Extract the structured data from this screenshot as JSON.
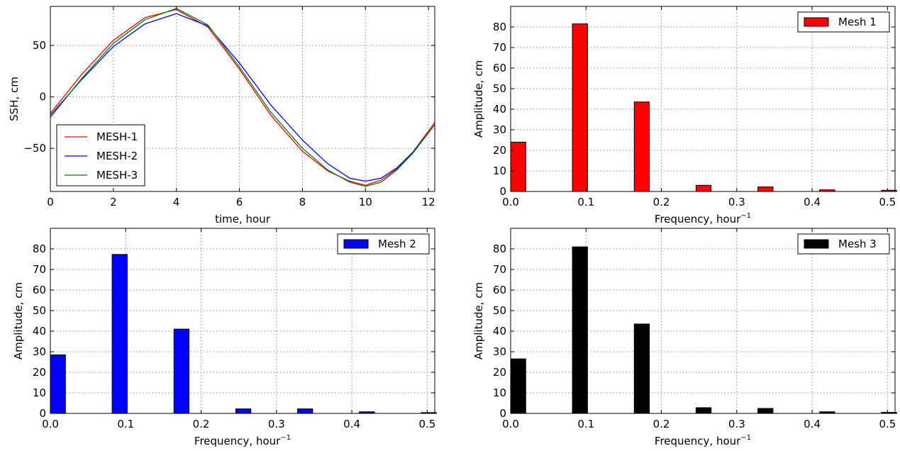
{
  "chart_data": [
    {
      "type": "line",
      "xlabel": "time, hour",
      "ylabel": "SSH, cm",
      "xlim": [
        0,
        12.2
      ],
      "ylim": [
        -92,
        88
      ],
      "xticks": [
        0,
        2,
        4,
        6,
        8,
        10,
        12
      ],
      "yticks": [
        -50,
        0,
        50
      ],
      "ytick_labels": [
        "−50",
        "0",
        "50"
      ],
      "grid": true,
      "legend_position": "lower-left",
      "series": [
        {
          "name": "MESH-1",
          "color": "#ff0000",
          "x": [
            0,
            1,
            2,
            3,
            4,
            5,
            6,
            7,
            8,
            8.8,
            9.5,
            10,
            10.5,
            11,
            11.5,
            12.2
          ],
          "y": [
            -16,
            22,
            55,
            77,
            85,
            68,
            27,
            -18,
            -53,
            -72,
            -82,
            -86,
            -81,
            -70,
            -54,
            -25
          ]
        },
        {
          "name": "MESH-2",
          "color": "#0000ff",
          "x": [
            0,
            1,
            2,
            3,
            4,
            5,
            6,
            7,
            8,
            8.8,
            9.5,
            10,
            10.5,
            11,
            11.5,
            12.2
          ],
          "y": [
            -18,
            17,
            49,
            71,
            81,
            69,
            33,
            -8,
            -42,
            -65,
            -79,
            -82,
            -79,
            -69,
            -54,
            -27
          ]
        },
        {
          "name": "MESH-3",
          "color": "#008000",
          "x": [
            0,
            1,
            2,
            3,
            4,
            5,
            6,
            7,
            8,
            8.8,
            9.5,
            10,
            10.5,
            11,
            11.5,
            12.2
          ],
          "y": [
            -20,
            18,
            52,
            75,
            86,
            70,
            29,
            -15,
            -50,
            -71,
            -83,
            -87,
            -83,
            -71,
            -55,
            -27
          ]
        }
      ]
    },
    {
      "type": "bar",
      "xlabel": "Frequency, hour",
      "xlabel_sup": "−1",
      "ylabel": "Amplitude, cm",
      "xlim": [
        0,
        0.51
      ],
      "ylim": [
        0,
        90
      ],
      "xticks": [
        0.0,
        0.1,
        0.2,
        0.3,
        0.4,
        0.5
      ],
      "xtick_labels": [
        "0.0",
        "0.1",
        "0.2",
        "0.3",
        "0.4",
        "0.5"
      ],
      "yticks": [
        0,
        10,
        20,
        30,
        40,
        50,
        60,
        70,
        80
      ],
      "grid": true,
      "legend_position": "top-right",
      "series": [
        {
          "name": "Mesh 1",
          "color": "#ff0000",
          "x": [
            0.0,
            0.082,
            0.164,
            0.246,
            0.328,
            0.41,
            0.492
          ],
          "values": [
            24,
            81.5,
            43.5,
            3,
            2.2,
            0.8,
            0.6
          ]
        }
      ]
    },
    {
      "type": "bar",
      "xlabel": "Frequency, hour",
      "xlabel_sup": "−1",
      "ylabel": "Amplitude, cm",
      "xlim": [
        0,
        0.51
      ],
      "ylim": [
        0,
        90
      ],
      "xticks": [
        0.0,
        0.1,
        0.2,
        0.3,
        0.4,
        0.5
      ],
      "xtick_labels": [
        "0.0",
        "0.1",
        "0.2",
        "0.3",
        "0.4",
        "0.5"
      ],
      "yticks": [
        0,
        10,
        20,
        30,
        40,
        50,
        60,
        70,
        80
      ],
      "grid": true,
      "legend_position": "top-right",
      "series": [
        {
          "name": "Mesh 2",
          "color": "#0000ff",
          "x": [
            0.0,
            0.082,
            0.164,
            0.246,
            0.328,
            0.41,
            0.492
          ],
          "values": [
            28.5,
            77.3,
            41,
            2.2,
            2.2,
            0.8,
            0.4
          ]
        }
      ]
    },
    {
      "type": "bar",
      "xlabel": "Frequency, hour",
      "xlabel_sup": "−1",
      "ylabel": "Amplitude, cm",
      "xlim": [
        0,
        0.51
      ],
      "ylim": [
        0,
        90
      ],
      "xticks": [
        0.0,
        0.1,
        0.2,
        0.3,
        0.4,
        0.5
      ],
      "xtick_labels": [
        "0.0",
        "0.1",
        "0.2",
        "0.3",
        "0.4",
        "0.5"
      ],
      "yticks": [
        0,
        10,
        20,
        30,
        40,
        50,
        60,
        70,
        80
      ],
      "grid": true,
      "legend_position": "top-right",
      "series": [
        {
          "name": "Mesh 3",
          "color": "#000000",
          "x": [
            0.0,
            0.082,
            0.164,
            0.246,
            0.328,
            0.41,
            0.492
          ],
          "values": [
            26.5,
            81,
            43.5,
            2.8,
            2.4,
            0.8,
            0.5
          ]
        }
      ]
    }
  ]
}
